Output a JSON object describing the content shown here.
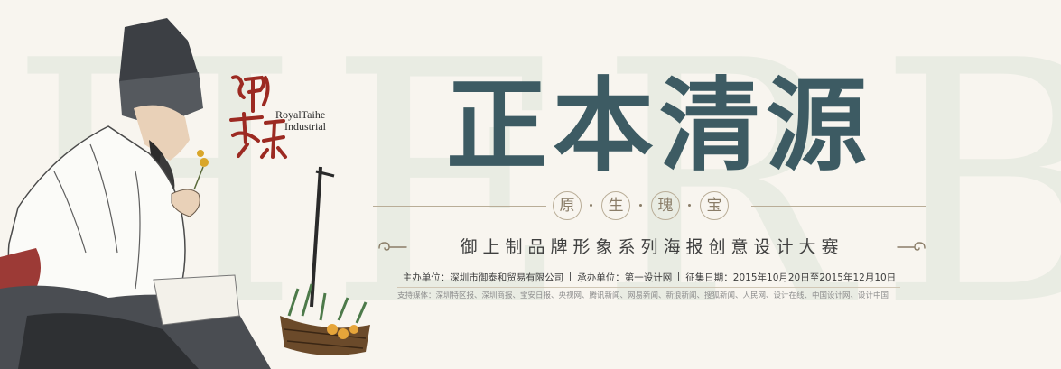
{
  "watermark": "HERBS",
  "logo": {
    "chinese": "御泰和",
    "english_line1": "RoyalTaihe",
    "english_line2": "Industrial"
  },
  "title": "正本清源",
  "seals": [
    "原",
    "生",
    "瑰",
    "宝"
  ],
  "subtitle": "御上制品牌形象系列海报创意设计大赛",
  "info": {
    "organizer": "主办单位：深圳市御泰和贸易有限公司",
    "co_organizer": "承办单位：第一设计网",
    "period": "征集日期：2015年10月20日至2015年12月10日"
  },
  "media": "支持媒体：深圳特区报、深圳商报、宝安日报、央视网、腾讯新闻、网易新闻、新浪新闻、搜狐新闻、人民网、设计在线、中国设计网、设计中国",
  "colors": {
    "background": "#f8f5ef",
    "title": "#3d5b63",
    "seal": "#8a7d68",
    "logo_red": "#9c2a22",
    "watermark": "#e9ece3"
  }
}
